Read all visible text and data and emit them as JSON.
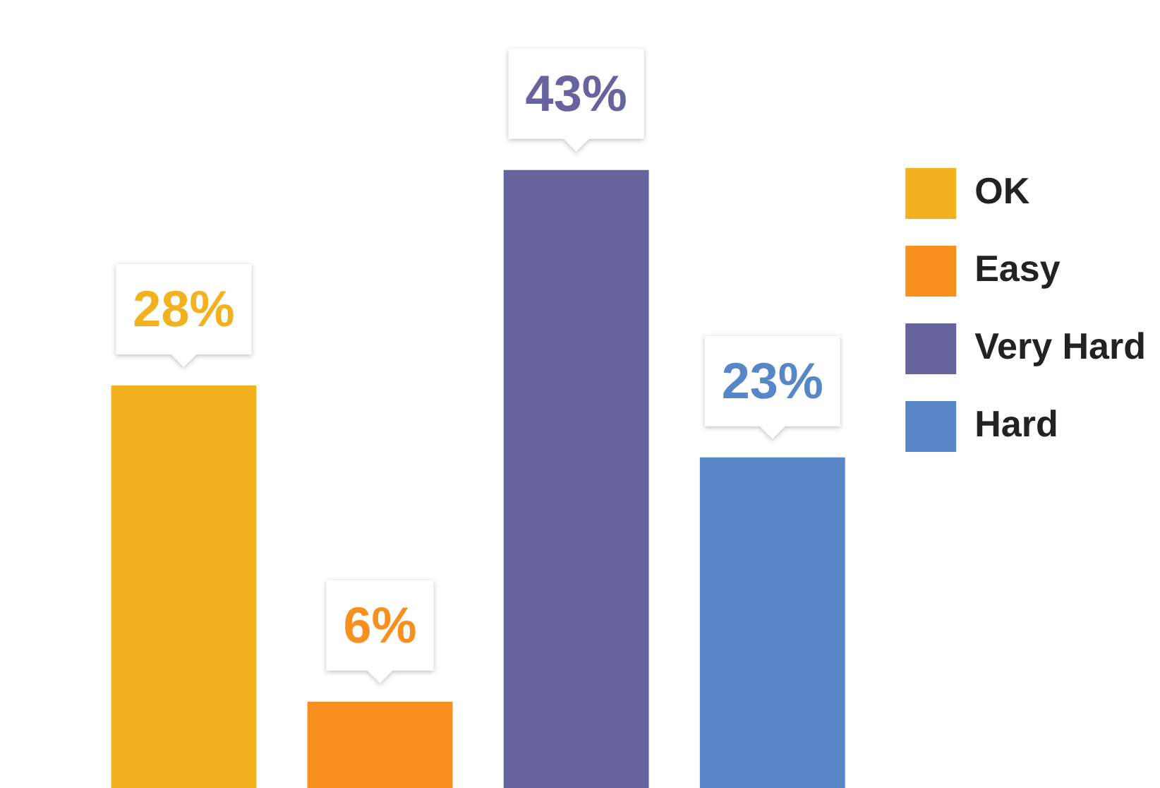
{
  "chart_data": {
    "type": "bar",
    "categories": [
      null
    ],
    "series": [
      {
        "name": "OK",
        "color": "#f2b220",
        "values": [
          28
        ],
        "value_labels": [
          "28%"
        ]
      },
      {
        "name": "Easy",
        "color": "#f7901e",
        "values": [
          6
        ],
        "value_labels": [
          "6%"
        ]
      },
      {
        "name": "Very Hard",
        "color": "#66639e",
        "values": [
          43
        ],
        "value_labels": [
          "43%"
        ]
      },
      {
        "name": "Hard",
        "color": "#5887c8",
        "values": [
          23
        ],
        "value_labels": [
          "23%"
        ]
      }
    ],
    "tick_labels": false,
    "legend": "top right"
  }
}
